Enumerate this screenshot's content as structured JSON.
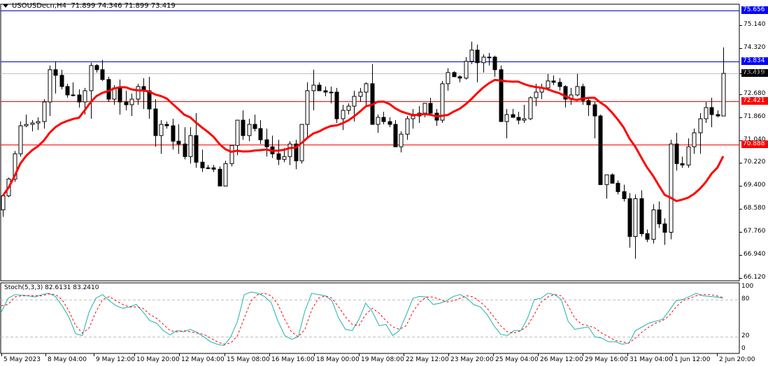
{
  "header": {
    "symbol": "USOUSDecn,H4",
    "ohlc": "71.899 74.346 71.899 73.419"
  },
  "stochastic": {
    "label": "Stoch(5,3,3) 82.6131 83.2410",
    "levels": [
      "100",
      "80",
      "20",
      "0"
    ]
  },
  "colors": {
    "background": "#ffffff",
    "candle_up_fill": "#ffffff",
    "candle_down_fill": "#000000",
    "ma_line": "#ff0000",
    "hline_blue": "#0000cc",
    "hline_red": "#ff0000",
    "hline_gray": "#c0c0c0",
    "stoch_main": "#20b2aa",
    "stoch_signal": "#ff0000"
  },
  "price_tags": [
    {
      "value": "75.656",
      "bg": "#0000ff"
    },
    {
      "value": "73.834",
      "bg": "#0000ff"
    },
    {
      "value": "73.419",
      "bg": "#000000"
    },
    {
      "value": "72.421",
      "bg": "#ff0000"
    },
    {
      "value": "70.888",
      "bg": "#ff0000"
    }
  ],
  "chart_data": [
    {
      "type": "candlestick",
      "title": "USOUSDecn,H4 71.899 74.346 71.899 73.419",
      "xlabel": "",
      "ylabel": "Price",
      "ylim": [
        66.12,
        75.9
      ],
      "y_ticks": [
        "75.140",
        "74.320",
        "73.419",
        "72.680",
        "71.860",
        "71.040",
        "70.220",
        "69.400",
        "68.580",
        "67.760",
        "66.940",
        "66.120"
      ],
      "x_ticks": [
        "5 May 2023",
        "8 May 04:00",
        "9 May 12:00",
        "10 May 20:00",
        "12 May 04:00",
        "15 May 08:00",
        "16 May 16:00",
        "18 May 00:00",
        "19 May 08:00",
        "22 May 12:00",
        "23 May 20:00",
        "25 May 04:00",
        "26 May 12:00",
        "29 May 16:00",
        "31 May 04:00",
        "1 Jun 12:00",
        "2 Jun 20:00"
      ],
      "horizontal_lines": [
        {
          "value": 75.656,
          "color": "blue"
        },
        {
          "value": 73.834,
          "color": "blue"
        },
        {
          "value": 73.419,
          "color": "gray",
          "note": "current bid"
        },
        {
          "value": 72.421,
          "color": "red"
        },
        {
          "value": 70.888,
          "color": "red"
        }
      ],
      "grid": false,
      "candles": [
        [
          68.55,
          69.1,
          68.3,
          69.05
        ],
        [
          69.05,
          69.7,
          69.0,
          69.65
        ],
        [
          69.65,
          70.65,
          69.55,
          70.55
        ],
        [
          70.55,
          71.7,
          70.45,
          71.55
        ],
        [
          71.55,
          71.95,
          71.5,
          71.6
        ],
        [
          71.6,
          71.75,
          71.35,
          71.65
        ],
        [
          71.65,
          71.85,
          71.4,
          71.7
        ],
        [
          71.7,
          72.5,
          71.45,
          72.4
        ],
        [
          72.4,
          73.7,
          71.9,
          73.55
        ],
        [
          73.55,
          73.85,
          72.7,
          73.35
        ],
        [
          73.35,
          73.55,
          72.85,
          72.95
        ],
        [
          72.95,
          73.05,
          72.55,
          72.65
        ],
        [
          72.65,
          73.1,
          72.6,
          72.65
        ],
        [
          72.65,
          72.85,
          72.2,
          72.4
        ],
        [
          72.4,
          72.9,
          71.95,
          72.8
        ],
        [
          72.8,
          73.8,
          71.8,
          73.7
        ],
        [
          73.7,
          73.75,
          73.45,
          73.55
        ],
        [
          73.55,
          73.9,
          73.15,
          73.2
        ],
        [
          73.2,
          73.3,
          72.4,
          72.5
        ],
        [
          72.5,
          73.0,
          72.3,
          72.9
        ],
        [
          72.9,
          73.2,
          71.95,
          72.4
        ],
        [
          72.4,
          72.8,
          72.1,
          72.3
        ],
        [
          72.3,
          72.7,
          71.9,
          72.5
        ],
        [
          72.5,
          73.05,
          72.3,
          72.95
        ],
        [
          72.95,
          73.25,
          72.15,
          72.8
        ],
        [
          72.8,
          73.3,
          71.8,
          72.15
        ],
        [
          72.15,
          72.5,
          70.8,
          71.2
        ],
        [
          71.2,
          71.75,
          70.55,
          71.6
        ],
        [
          71.6,
          71.7,
          71.45,
          71.55
        ],
        [
          71.55,
          71.8,
          70.7,
          71.0
        ],
        [
          71.0,
          71.6,
          70.55,
          70.9
        ],
        [
          70.9,
          71.5,
          70.35,
          70.45
        ],
        [
          70.45,
          71.5,
          70.2,
          71.2
        ],
        [
          71.2,
          72.0,
          70.05,
          70.25
        ],
        [
          70.25,
          70.7,
          69.9,
          70.05
        ],
        [
          70.05,
          70.15,
          70.0,
          70.05
        ],
        [
          70.05,
          70.15,
          69.9,
          70.0
        ],
        [
          70.0,
          70.1,
          69.4,
          69.4
        ],
        [
          69.4,
          70.3,
          69.4,
          70.2
        ],
        [
          70.2,
          70.8,
          70.1,
          70.85
        ],
        [
          70.85,
          71.75,
          70.5,
          71.75
        ],
        [
          71.75,
          72.1,
          71.05,
          71.2
        ],
        [
          71.2,
          71.8,
          71.0,
          71.6
        ],
        [
          71.6,
          71.95,
          71.35,
          71.45
        ],
        [
          71.45,
          71.75,
          70.9,
          71.05
        ],
        [
          71.05,
          71.45,
          70.45,
          70.8
        ],
        [
          70.8,
          71.2,
          70.4,
          70.55
        ],
        [
          70.55,
          71.05,
          70.15,
          70.35
        ],
        [
          70.35,
          70.75,
          70.25,
          70.45
        ],
        [
          70.45,
          71.0,
          70.15,
          70.9
        ],
        [
          70.9,
          71.05,
          70.0,
          70.3
        ],
        [
          70.3,
          71.4,
          70.2,
          71.6
        ],
        [
          71.6,
          73.1,
          71.1,
          72.8
        ],
        [
          72.8,
          73.55,
          72.1,
          73.0
        ],
        [
          73.0,
          73.1,
          72.8,
          72.8
        ],
        [
          72.8,
          72.95,
          72.6,
          72.75
        ],
        [
          72.75,
          72.95,
          72.35,
          72.75
        ],
        [
          72.75,
          72.9,
          71.65,
          71.8
        ],
        [
          71.8,
          72.3,
          71.4,
          72.1
        ],
        [
          72.1,
          72.35,
          71.95,
          72.25
        ],
        [
          72.25,
          72.8,
          71.7,
          72.6
        ],
        [
          72.6,
          72.9,
          72.4,
          72.75
        ],
        [
          72.75,
          73.1,
          72.25,
          73.05
        ],
        [
          73.05,
          73.75,
          71.6,
          71.6
        ],
        [
          71.6,
          71.95,
          71.3,
          71.85
        ],
        [
          71.85,
          72.05,
          71.6,
          71.7
        ],
        [
          71.7,
          71.85,
          71.5,
          71.6
        ],
        [
          71.6,
          71.75,
          70.8,
          70.8
        ],
        [
          70.8,
          71.35,
          70.6,
          71.25
        ],
        [
          71.25,
          71.9,
          71.05,
          71.8
        ],
        [
          71.8,
          72.15,
          71.45,
          71.9
        ],
        [
          71.9,
          72.25,
          71.65,
          72.0
        ],
        [
          72.0,
          72.35,
          71.85,
          72.35
        ],
        [
          72.35,
          72.55,
          71.95,
          72.0
        ],
        [
          72.0,
          72.15,
          71.55,
          71.75
        ],
        [
          71.75,
          73.15,
          71.65,
          73.05
        ],
        [
          73.05,
          73.6,
          72.8,
          73.45
        ],
        [
          73.45,
          73.5,
          73.3,
          73.3
        ],
        [
          73.3,
          73.35,
          73.1,
          73.25
        ],
        [
          73.25,
          74.0,
          73.2,
          73.85
        ],
        [
          73.85,
          74.55,
          73.75,
          74.25
        ],
        [
          74.25,
          74.45,
          73.1,
          73.8
        ],
        [
          73.8,
          74.1,
          73.45,
          74.0
        ],
        [
          74.0,
          74.15,
          73.7,
          74.0
        ],
        [
          74.0,
          74.05,
          73.3,
          73.55
        ],
        [
          73.55,
          73.7,
          71.7,
          71.7
        ],
        [
          71.7,
          72.15,
          71.1,
          71.95
        ],
        [
          71.95,
          72.15,
          71.85,
          71.85
        ],
        [
          71.85,
          72.05,
          71.6,
          71.75
        ],
        [
          71.75,
          72.3,
          71.65,
          71.8
        ],
        [
          71.8,
          72.6,
          71.75,
          72.55
        ],
        [
          72.55,
          73.05,
          72.25,
          72.75
        ],
        [
          72.75,
          73.05,
          72.5,
          72.9
        ],
        [
          72.9,
          73.4,
          72.8,
          73.15
        ],
        [
          73.15,
          73.35,
          73.0,
          73.1
        ],
        [
          73.1,
          73.25,
          72.8,
          72.95
        ],
        [
          72.95,
          73.0,
          72.2,
          72.5
        ],
        [
          72.5,
          72.9,
          72.3,
          72.65
        ],
        [
          72.65,
          73.4,
          72.6,
          72.95
        ],
        [
          72.95,
          73.05,
          72.3,
          72.45
        ],
        [
          72.45,
          72.55,
          71.9,
          72.3
        ],
        [
          72.3,
          72.4,
          71.1,
          71.9
        ],
        [
          71.9,
          71.95,
          69.45,
          69.45
        ],
        [
          69.45,
          69.75,
          68.95,
          69.8
        ],
        [
          69.8,
          69.85,
          69.5,
          69.5
        ],
        [
          69.5,
          69.6,
          69.1,
          69.2
        ],
        [
          69.2,
          69.45,
          68.85,
          68.95
        ],
        [
          68.95,
          69.15,
          67.2,
          67.6
        ],
        [
          67.6,
          69.1,
          66.8,
          68.95
        ],
        [
          68.95,
          69.25,
          67.6,
          67.7
        ],
        [
          67.7,
          67.85,
          67.4,
          67.5
        ],
        [
          67.5,
          68.75,
          67.35,
          68.55
        ],
        [
          68.55,
          68.85,
          67.9,
          68.05
        ],
        [
          68.05,
          68.25,
          67.3,
          67.75
        ],
        [
          67.75,
          71.05,
          67.5,
          70.9
        ],
        [
          70.9,
          71.3,
          69.95,
          70.2
        ],
        [
          70.2,
          70.45,
          70.05,
          70.15
        ],
        [
          70.15,
          71.1,
          70.05,
          70.8
        ],
        [
          70.8,
          71.45,
          70.55,
          71.3
        ],
        [
          71.3,
          72.0,
          70.55,
          71.8
        ],
        [
          71.8,
          72.4,
          71.65,
          72.2
        ],
        [
          72.2,
          72.55,
          71.5,
          71.95
        ],
        [
          71.95,
          72.1,
          71.85,
          71.9
        ],
        [
          71.899,
          74.346,
          71.899,
          73.419
        ]
      ],
      "series": [
        {
          "name": "Moving Average (red)",
          "values_note": "smoothed line, starting ~70.40, dips to ~69.70, rises to ~72.80 around 10 May, falls to ~70.90 by 16 May, rises to ~73.00 at 25-26 May, falls to ~69.65 by 2 Jun, ends ~70.10"
        }
      ]
    },
    {
      "type": "line",
      "title": "Stoch(5,3,3) 82.6131 83.2410",
      "ylim": [
        0,
        100
      ],
      "y_ticks": [
        "100",
        "80",
        "20",
        "0"
      ],
      "levels": [
        80,
        20
      ],
      "series": [
        {
          "name": "Main %K",
          "color": "#20b2aa",
          "values": [
            60,
            82,
            88,
            87,
            86,
            84,
            88,
            90,
            85,
            70,
            52,
            25,
            22,
            60,
            82,
            88,
            78,
            70,
            66,
            68,
            72,
            60,
            46,
            42,
            30,
            23,
            30,
            28,
            32,
            27,
            20,
            12,
            8,
            6,
            20,
            45,
            88,
            92,
            90,
            85,
            75,
            45,
            22,
            16,
            20,
            62,
            90,
            88,
            86,
            78,
            50,
            32,
            30,
            48,
            74,
            60,
            38,
            40,
            22,
            30,
            55,
            82,
            85,
            84,
            72,
            74,
            78,
            85,
            88,
            82,
            72,
            68,
            56,
            38,
            24,
            22,
            30,
            30,
            50,
            80,
            82,
            90,
            88,
            80,
            45,
            32,
            34,
            36,
            20,
            18,
            12,
            12,
            8,
            10,
            30,
            36,
            42,
            45,
            48,
            62,
            78,
            80,
            85,
            90,
            86,
            85,
            84,
            82
          ]
        },
        {
          "name": "Signal %D",
          "color": "#ff0000",
          "values": [
            70,
            72,
            84,
            86,
            86,
            86,
            86,
            89,
            88,
            80,
            62,
            38,
            26,
            34,
            60,
            80,
            85,
            78,
            72,
            68,
            68,
            66,
            56,
            50,
            40,
            30,
            28,
            30,
            28,
            26,
            24,
            18,
            12,
            8,
            10,
            22,
            50,
            78,
            88,
            90,
            86,
            72,
            48,
            28,
            20,
            32,
            64,
            82,
            86,
            82,
            68,
            52,
            40,
            38,
            56,
            66,
            58,
            46,
            36,
            32,
            38,
            60,
            76,
            84,
            84,
            80,
            76,
            78,
            82,
            86,
            84,
            76,
            66,
            52,
            38,
            28,
            26,
            30,
            38,
            56,
            76,
            84,
            88,
            86,
            70,
            50,
            40,
            38,
            34,
            26,
            20,
            14,
            12,
            10,
            18,
            28,
            36,
            42,
            46,
            54,
            68,
            78,
            82,
            86,
            88,
            88,
            86,
            83
          ]
        }
      ]
    }
  ]
}
